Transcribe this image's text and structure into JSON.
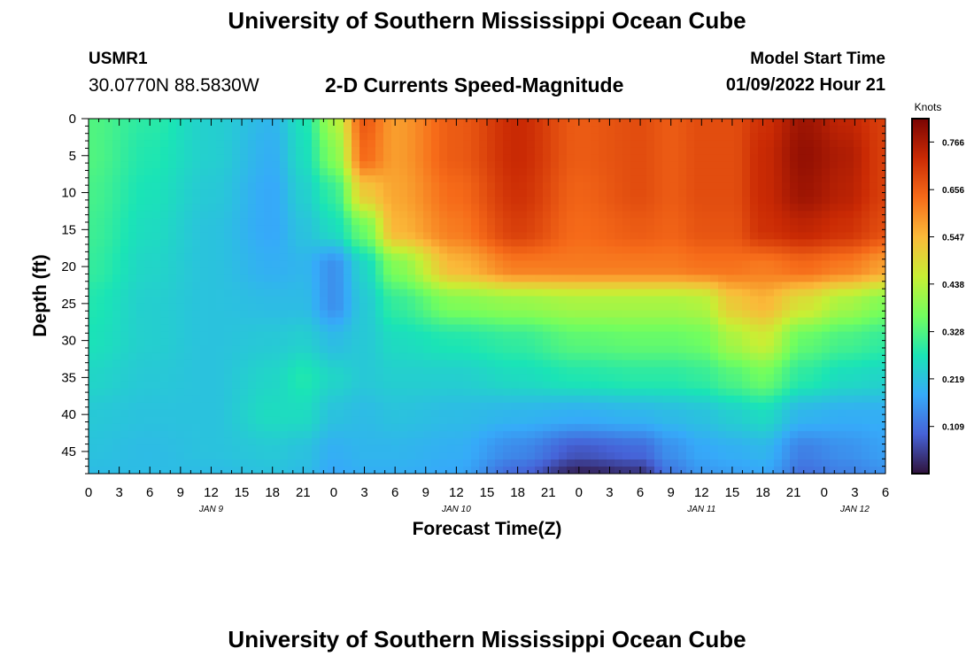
{
  "header": {
    "title": "University of Southern Mississippi Ocean Cube",
    "station_id": "USMR1",
    "station_coords": "30.0770N  88.5830W",
    "subtitle": "2-D Currents Speed-Magnitude",
    "model_start_label": "Model Start Time",
    "model_start_value": "01/09/2022 Hour 21"
  },
  "footer": {
    "title": "University of Southern Mississippi Ocean Cube"
  },
  "chart_data": {
    "type": "heatmap",
    "title": "2-D Currents Speed-Magnitude",
    "xlabel": "Forecast Time(Z)",
    "ylabel": "Depth (ft)",
    "x_ticks": [
      "0",
      "3",
      "6",
      "9",
      "12",
      "15",
      "18",
      "21",
      "0",
      "3",
      "6",
      "9",
      "12",
      "15",
      "18",
      "21",
      "0",
      "3",
      "6",
      "9",
      "12",
      "15",
      "18",
      "21",
      "0",
      "3",
      "6"
    ],
    "x_range_hours": [
      0,
      78
    ],
    "day_labels": [
      {
        "label": "JAN 9",
        "hour": 12
      },
      {
        "label": "JAN 10",
        "hour": 36
      },
      {
        "label": "JAN 11",
        "hour": 60
      },
      {
        "label": "JAN 12",
        "hour": 75
      }
    ],
    "y_ticks": [
      0,
      5,
      10,
      15,
      20,
      25,
      30,
      35,
      40,
      45
    ],
    "y_range": [
      0,
      48
    ],
    "y_inverted": true,
    "colorbar": {
      "unit": "Knots",
      "min": 0.0,
      "max": 0.82,
      "ticks": [
        0.766,
        0.656,
        0.547,
        0.438,
        0.328,
        0.219,
        0.109
      ],
      "colors": [
        "#30123b",
        "#4662d7",
        "#36aaf9",
        "#1ae4b6",
        "#72fe5e",
        "#c8ef34",
        "#faba39",
        "#f66b19",
        "#ca2a04",
        "#7a0403"
      ]
    },
    "grid": false,
    "x_hours": [
      0,
      6,
      12,
      18,
      21,
      24,
      27,
      30,
      36,
      42,
      48,
      54,
      57,
      60,
      63,
      66,
      70,
      74,
      78
    ],
    "depths": [
      0,
      5,
      10,
      15,
      20,
      25,
      30,
      35,
      40,
      45,
      48
    ],
    "values": [
      [
        0.33,
        0.29,
        0.24,
        0.2,
        0.27,
        0.42,
        0.66,
        0.58,
        0.66,
        0.73,
        0.66,
        0.68,
        0.66,
        0.68,
        0.68,
        0.72,
        0.78,
        0.74,
        0.7
      ],
      [
        0.33,
        0.28,
        0.24,
        0.19,
        0.26,
        0.38,
        0.64,
        0.58,
        0.66,
        0.73,
        0.66,
        0.68,
        0.66,
        0.68,
        0.68,
        0.73,
        0.79,
        0.76,
        0.7
      ],
      [
        0.32,
        0.27,
        0.23,
        0.18,
        0.24,
        0.3,
        0.52,
        0.57,
        0.64,
        0.72,
        0.65,
        0.68,
        0.66,
        0.68,
        0.68,
        0.73,
        0.78,
        0.75,
        0.7
      ],
      [
        0.31,
        0.26,
        0.22,
        0.18,
        0.22,
        0.26,
        0.36,
        0.55,
        0.62,
        0.7,
        0.64,
        0.66,
        0.65,
        0.67,
        0.67,
        0.72,
        0.74,
        0.72,
        0.68
      ],
      [
        0.3,
        0.25,
        0.22,
        0.19,
        0.2,
        0.15,
        0.25,
        0.38,
        0.55,
        0.62,
        0.62,
        0.62,
        0.62,
        0.63,
        0.63,
        0.62,
        0.64,
        0.62,
        0.58
      ],
      [
        0.28,
        0.24,
        0.22,
        0.21,
        0.21,
        0.15,
        0.23,
        0.3,
        0.38,
        0.4,
        0.42,
        0.42,
        0.42,
        0.43,
        0.52,
        0.55,
        0.48,
        0.42,
        0.38
      ],
      [
        0.27,
        0.24,
        0.22,
        0.23,
        0.24,
        0.21,
        0.23,
        0.26,
        0.28,
        0.3,
        0.34,
        0.35,
        0.35,
        0.36,
        0.42,
        0.46,
        0.35,
        0.32,
        0.3
      ],
      [
        0.25,
        0.23,
        0.22,
        0.25,
        0.28,
        0.25,
        0.23,
        0.24,
        0.24,
        0.26,
        0.28,
        0.29,
        0.29,
        0.3,
        0.33,
        0.36,
        0.29,
        0.26,
        0.25
      ],
      [
        0.23,
        0.22,
        0.22,
        0.26,
        0.26,
        0.22,
        0.21,
        0.22,
        0.21,
        0.2,
        0.19,
        0.2,
        0.21,
        0.22,
        0.24,
        0.26,
        0.2,
        0.19,
        0.19
      ],
      [
        0.22,
        0.21,
        0.22,
        0.23,
        0.22,
        0.19,
        0.2,
        0.2,
        0.19,
        0.14,
        0.08,
        0.1,
        0.15,
        0.18,
        0.19,
        0.2,
        0.13,
        0.15,
        0.17
      ],
      [
        0.21,
        0.21,
        0.21,
        0.22,
        0.21,
        0.18,
        0.19,
        0.19,
        0.18,
        0.1,
        0.02,
        0.04,
        0.12,
        0.16,
        0.17,
        0.18,
        0.11,
        0.13,
        0.15
      ]
    ]
  }
}
